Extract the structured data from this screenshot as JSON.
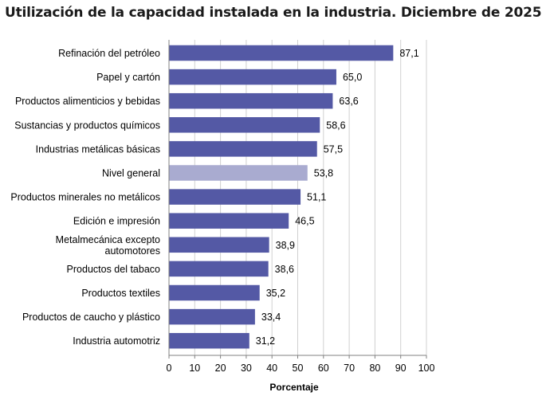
{
  "chart_data": {
    "type": "bar",
    "orientation": "horizontal",
    "title": "Utilización de la capacidad instalada en la industria. Diciembre de 2025",
    "xlabel": "Porcentaje",
    "ylabel": "",
    "xlim": [
      0,
      100
    ],
    "xticks": [
      "0",
      "10",
      "20",
      "30",
      "40",
      "50",
      "60",
      "70",
      "80",
      "90",
      "100"
    ],
    "grid": "vertical",
    "bar_color": "#5459a5",
    "highlight_color": "#a9abd0",
    "categories": [
      [
        "Refinación del petróleo"
      ],
      [
        "Papel y cartón"
      ],
      [
        "Productos alimenticios y bebidas"
      ],
      [
        "Sustancias y productos químicos"
      ],
      [
        "Industrias metálicas básicas"
      ],
      [
        "Nivel general"
      ],
      [
        "Productos minerales no metálicos"
      ],
      [
        "Edición e impresión"
      ],
      [
        "Metalmecánica excepto",
        "automotores"
      ],
      [
        "Productos del tabaco"
      ],
      [
        "Productos textiles"
      ],
      [
        "Productos de caucho y plástico"
      ],
      [
        "Industria automotriz"
      ]
    ],
    "values": [
      87.1,
      65.0,
      63.6,
      58.6,
      57.5,
      53.8,
      51.1,
      46.5,
      38.9,
      38.6,
      35.2,
      33.4,
      31.2
    ],
    "value_labels": [
      "87,1",
      "65,0",
      "63,6",
      "58,6",
      "57,5",
      "53,8",
      "51,1",
      "46,5",
      "38,9",
      "38,6",
      "35,2",
      "33,4",
      "31,2"
    ],
    "highlight": [
      "Nivel general"
    ]
  }
}
